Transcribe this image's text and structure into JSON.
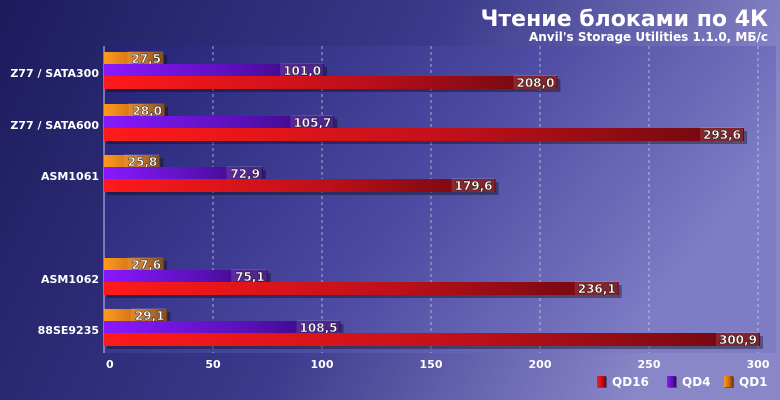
{
  "chart_data": {
    "type": "bar",
    "orientation": "horizontal",
    "title": "Чтение блоками по 4К",
    "subtitle": "Anvil's Storage Utilities 1.1.0, МБ/с",
    "categories": [
      "Z77 / SATA300",
      "Z77 / SATA600",
      "ASM1061",
      "ASM1062",
      "88SE9235"
    ],
    "series": [
      {
        "name": "QD1",
        "values": [
          27.5,
          28.0,
          25.8,
          27.6,
          29.1
        ],
        "labels": [
          "27,5",
          "28,0",
          "25,8",
          "27,6",
          "29,1"
        ]
      },
      {
        "name": "QD4",
        "values": [
          101.0,
          105.7,
          72.9,
          75.1,
          108.5
        ],
        "labels": [
          "101,0",
          "105,7",
          "72,9",
          "75,1",
          "108,5"
        ]
      },
      {
        "name": "QD16",
        "values": [
          208.0,
          293.6,
          179.6,
          236.1,
          300.9
        ],
        "labels": [
          "208,0",
          "293,6",
          "179,6",
          "236,1",
          "300,9"
        ]
      }
    ],
    "xlim": [
      0,
      300
    ],
    "xticks": [
      "0",
      "50",
      "100",
      "150",
      "200",
      "250",
      "300"
    ],
    "grid": true,
    "legend_position": "bottom-right",
    "legend_order": [
      "QD16",
      "QD4",
      "QD1"
    ],
    "colors": {
      "QD1": "#e07a10",
      "QD4": "#7a12d8",
      "QD16": "#e0141c"
    }
  }
}
